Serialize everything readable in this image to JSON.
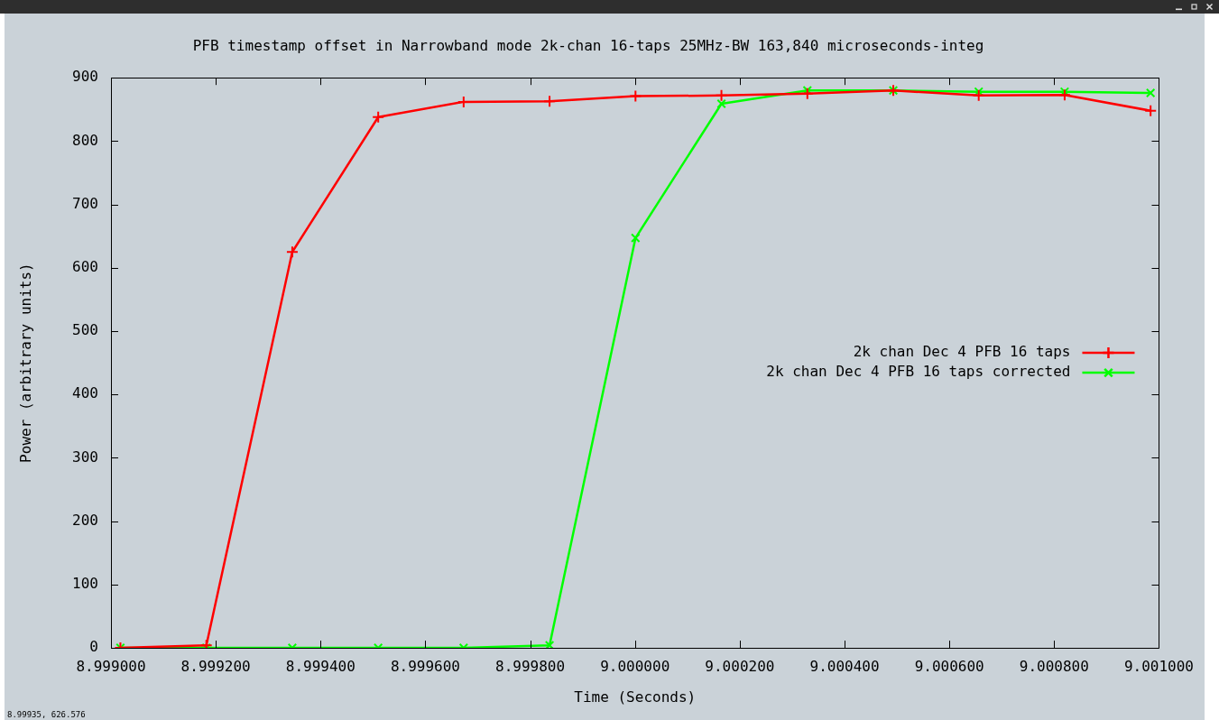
{
  "chart_data": {
    "type": "line",
    "title": "PFB timestamp offset in Narrowband mode 2k-chan 16-taps 25MHz-BW 163,840 microseconds-integ",
    "xlabel": "Time (Seconds)",
    "ylabel": "Power (arbitrary units)",
    "x": [
      8.999018,
      8.999182,
      8.999346,
      8.99951,
      8.999673,
      8.999837,
      9.000001,
      9.000165,
      9.000329,
      9.000493,
      9.000656,
      9.00082,
      9.000984
    ],
    "series": [
      {
        "name": "2k chan Dec 4 PFB 16 taps",
        "color": "#ff0000",
        "values": [
          0,
          4,
          625,
          838,
          862,
          863,
          871,
          872,
          875,
          880,
          872,
          873,
          848
        ]
      },
      {
        "name": "2k chan Dec 4 PFB 16 taps corrected",
        "color": "#00ff00",
        "values": [
          0,
          0,
          0,
          0,
          0,
          4,
          647,
          859,
          880,
          880,
          878,
          878,
          876
        ]
      }
    ],
    "xlim": [
      8.999,
      9.001
    ],
    "xticks": [
      {
        "value": 8.999,
        "label": "8.999000"
      },
      {
        "value": 8.9992,
        "label": "8.999200"
      },
      {
        "value": 8.9994,
        "label": "8.999400"
      },
      {
        "value": 8.9996,
        "label": "8.999600"
      },
      {
        "value": 8.9998,
        "label": "8.999800"
      },
      {
        "value": 9.0,
        "label": "9.000000"
      },
      {
        "value": 9.0002,
        "label": "9.000200"
      },
      {
        "value": 9.0004,
        "label": "9.000400"
      },
      {
        "value": 9.0006,
        "label": "9.000600"
      },
      {
        "value": 9.0008,
        "label": "9.000800"
      },
      {
        "value": 9.001,
        "label": "9.001000"
      }
    ],
    "ylim": [
      0,
      900
    ],
    "yticks": [
      0,
      100,
      200,
      300,
      400,
      500,
      600,
      700,
      800,
      900
    ],
    "legend": "right",
    "marker": "cross",
    "line_style": "solid",
    "annotations": [
      "8.99935, 626.576"
    ]
  }
}
